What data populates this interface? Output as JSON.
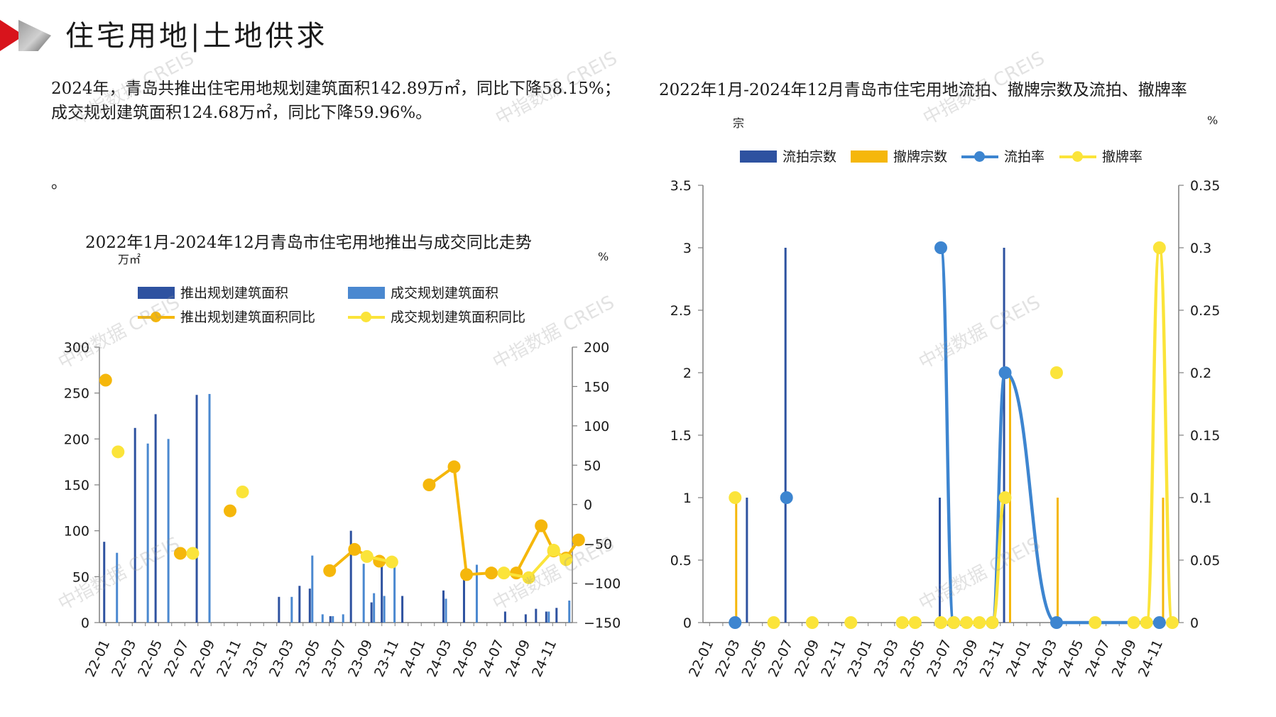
{
  "header": {
    "title": "住宅用地|土地供求"
  },
  "summary": {
    "text": "2024年，青岛共推出住宅用地规划建筑面积142.89万㎡，同比下降58.15%；成交规划建筑面积124.68万㎡，同比下降59.96%。",
    "dot": "。"
  },
  "watermark": "中指数据 CREIS",
  "colors": {
    "dark_blue": "#2e52a0",
    "light_blue": "#4a88d0",
    "orange": "#f5b70b",
    "yellow": "#fbe43a",
    "axis": "#7f7f7f"
  },
  "chart_data": [
    {
      "type": "bar+line",
      "title": "2022年1月-2024年12月青岛市住宅用地推出与成交同比走势",
      "left_unit": "万㎡",
      "right_unit": "%",
      "y_left": {
        "min": 0,
        "max": 300,
        "ticks": [
          0,
          50,
          100,
          150,
          200,
          250,
          300
        ]
      },
      "y_right": {
        "min": -150,
        "max": 200,
        "ticks": [
          -150,
          -100,
          -50,
          0,
          50,
          100,
          150,
          200
        ]
      },
      "x_tick_labels": [
        "22-01",
        "22-03",
        "22-05",
        "22-07",
        "22-09",
        "22-11",
        "23-01",
        "23-03",
        "23-05",
        "23-07",
        "23-09",
        "23-11",
        "24-01",
        "24-03",
        "24-05",
        "24-07",
        "24-09",
        "24-11"
      ],
      "legend": [
        "推出规划建筑面积",
        "成交规划建筑面积",
        "推出规划建筑面积同比",
        "成交规划建筑面积同比"
      ],
      "series": [
        {
          "name": "推出规划建筑面积",
          "kind": "bar",
          "axis": "left",
          "color": "#2e52a0",
          "values": [
            88,
            0,
            0,
            212,
            0,
            227,
            0,
            0,
            0,
            248,
            0,
            0,
            0,
            0,
            0,
            0,
            0,
            28,
            0,
            40,
            37,
            0,
            7,
            0,
            100,
            0,
            22,
            62,
            0,
            29,
            0,
            0,
            0,
            35,
            0,
            50,
            0,
            0,
            0,
            12,
            0,
            9,
            15,
            12,
            16,
            0
          ]
        },
        {
          "name": "成交规划建筑面积",
          "kind": "bar",
          "axis": "left",
          "color": "#4a88d0",
          "values": [
            0,
            76,
            0,
            0,
            195,
            0,
            200,
            0,
            0,
            0,
            249,
            0,
            0,
            0,
            0,
            0,
            0,
            0,
            28,
            0,
            73,
            9,
            7,
            9,
            0,
            64,
            32,
            29,
            63,
            0,
            0,
            0,
            0,
            26,
            0,
            0,
            63,
            0,
            0,
            0,
            0,
            0,
            0,
            12,
            0,
            24
          ]
        },
        {
          "name": "推出规划建筑面积同比",
          "kind": "line",
          "axis": "right",
          "color": "#f5b70b",
          "points": [
            [
              0,
              158
            ],
            [
              6,
              -62
            ],
            [
              10,
              -8
            ],
            [
              18,
              -84
            ],
            [
              20,
              -57
            ],
            [
              22,
              -72
            ],
            [
              26,
              25
            ],
            [
              28,
              48
            ],
            [
              29,
              -89
            ],
            [
              31,
              -87
            ],
            [
              33,
              -87
            ],
            [
              35,
              -27
            ],
            [
              36,
              -59
            ],
            [
              37,
              -68
            ],
            [
              38,
              -45
            ]
          ]
        },
        {
          "name": "成交规划建筑面积同比",
          "kind": "line",
          "axis": "right",
          "color": "#fbe43a",
          "points": [
            [
              1,
              67
            ],
            [
              7,
              -62
            ],
            [
              11,
              16
            ],
            [
              21,
              -66
            ],
            [
              23,
              -73
            ],
            [
              32,
              -87
            ],
            [
              34,
              -93
            ],
            [
              36,
              -58
            ],
            [
              37,
              -70
            ]
          ]
        }
      ]
    },
    {
      "type": "bar+line",
      "title": "2022年1月-2024年12月青岛市住宅用地流拍、撤牌宗数及流拍、撤牌率",
      "left_unit": "宗",
      "right_unit": "%",
      "y_left": {
        "min": 0,
        "max": 3.5,
        "tick_labels": [
          "0",
          "0.5",
          "1",
          "1.5",
          "2",
          "2.5",
          "3",
          "3.5"
        ]
      },
      "y_right": {
        "min": 0,
        "max": 0.35,
        "tick_labels": [
          "0",
          "0.05",
          "0.1",
          "0.15",
          "0.2",
          "0.25",
          "0.3",
          "0.35"
        ]
      },
      "x_tick_labels": [
        "22-01",
        "22-03",
        "22-05",
        "22-07",
        "22-09",
        "22-11",
        "23-01",
        "23-03",
        "23-05",
        "23-07",
        "23-09",
        "23-11",
        "24-01",
        "24-03",
        "24-05",
        "24-07",
        "24-09",
        "24-11"
      ],
      "legend": [
        "流拍宗数",
        "撤牌宗数",
        "流拍率",
        "撤牌率"
      ],
      "series": [
        {
          "name": "流拍宗数",
          "kind": "bar",
          "axis": "left",
          "color": "#2e52a0",
          "points": [
            [
              3,
              1
            ],
            [
              6,
              3
            ],
            [
              18,
              1
            ],
            [
              23,
              3
            ],
            [
              35,
              0
            ]
          ]
        },
        {
          "name": "撤牌宗数",
          "kind": "bar",
          "axis": "left",
          "color": "#f5b70b",
          "points": [
            [
              2,
              1
            ],
            [
              23.3,
              2
            ],
            [
              27,
              1
            ],
            [
              35.2,
              1
            ]
          ]
        },
        {
          "name": "流拍率",
          "kind": "line",
          "axis": "right",
          "color": "#3d85d0",
          "points": [
            [
              2,
              0
            ],
            [
              6,
              0.1
            ],
            [
              18,
              0.3
            ],
            [
              19,
              0
            ],
            [
              22,
              0
            ],
            [
              23,
              0.2
            ],
            [
              27,
              0
            ],
            [
              35,
              0
            ]
          ],
          "breaks_after": [
            0,
            1
          ]
        },
        {
          "name": "撤牌率",
          "kind": "line",
          "axis": "right",
          "color": "#fbe43a",
          "points": [
            [
              2,
              0.1
            ],
            [
              5,
              0
            ],
            [
              8,
              0
            ],
            [
              11,
              0
            ],
            [
              15,
              0
            ],
            [
              16,
              0
            ],
            [
              18,
              0
            ],
            [
              19,
              0
            ],
            [
              20,
              0
            ],
            [
              21,
              0
            ],
            [
              22,
              0
            ],
            [
              23,
              0.1
            ],
            [
              27,
              0.2
            ],
            [
              30,
              0
            ],
            [
              33,
              0
            ],
            [
              34,
              0
            ],
            [
              35,
              0.3
            ],
            [
              36,
              0
            ]
          ],
          "breaks_after": [
            0,
            1,
            2,
            3,
            5,
            11,
            12,
            13,
            14
          ]
        }
      ]
    }
  ]
}
